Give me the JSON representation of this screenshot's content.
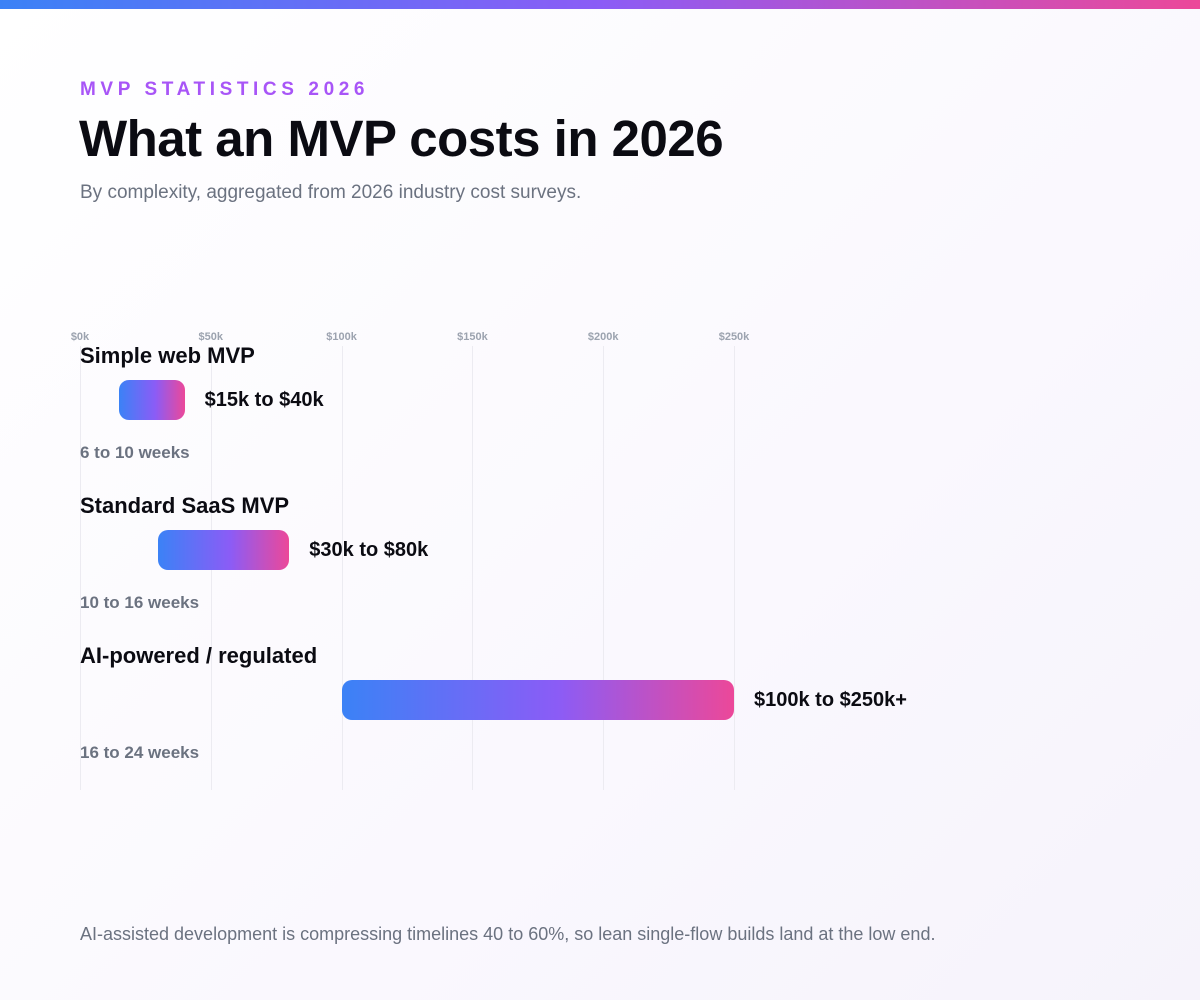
{
  "header": {
    "eyebrow": "MVP STATISTICS 2026",
    "title": "What an MVP costs in 2026",
    "subtitle": "By complexity, aggregated from 2026 industry cost surveys."
  },
  "colors": {
    "accent_blue": "#3b82f6",
    "accent_purple": "#8b5cf6",
    "accent_pink": "#ec4899",
    "eyebrow": "#a855f7"
  },
  "chart_data": {
    "type": "bar",
    "orientation": "horizontal-range",
    "xlim": [
      0,
      250
    ],
    "x_unit": "thousand USD",
    "ticks": [
      0,
      50,
      100,
      150,
      200,
      250
    ],
    "tick_labels": [
      "$0k",
      "$50k",
      "$100k",
      "$150k",
      "$200k",
      "$250k"
    ],
    "grid": true,
    "categories": [
      "Simple web MVP",
      "Standard SaaS MVP",
      "AI-powered / regulated"
    ],
    "ranges": [
      {
        "category": "Simple web MVP",
        "low": 15,
        "high": 40,
        "label": "$15k to $40k",
        "duration": "6 to 10 weeks"
      },
      {
        "category": "Standard SaaS MVP",
        "low": 30,
        "high": 80,
        "label": "$30k to $80k",
        "duration": "10 to 16 weeks"
      },
      {
        "category": "AI-powered / regulated",
        "low": 100,
        "high": 250,
        "label": "$100k to $250k+",
        "duration": "16 to 24 weeks"
      }
    ]
  },
  "footer": {
    "note": "AI-assisted development is compressing timelines 40 to 60%, so lean single-flow builds land at the low end."
  }
}
